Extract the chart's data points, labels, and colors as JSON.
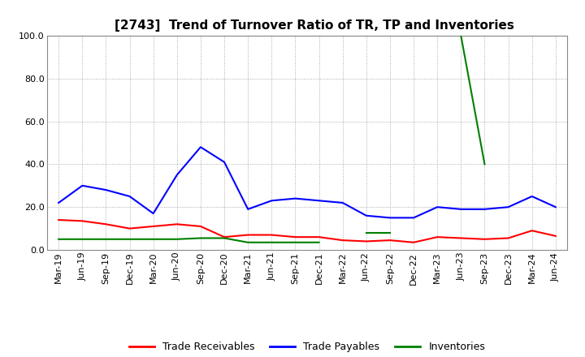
{
  "title": "[2743]  Trend of Turnover Ratio of TR, TP and Inventories",
  "xlabels": [
    "Mar-19",
    "Jun-19",
    "Sep-19",
    "Dec-19",
    "Mar-20",
    "Jun-20",
    "Sep-20",
    "Dec-20",
    "Mar-21",
    "Jun-21",
    "Sep-21",
    "Dec-21",
    "Mar-22",
    "Jun-22",
    "Sep-22",
    "Dec-22",
    "Mar-23",
    "Jun-23",
    "Sep-23",
    "Dec-23",
    "Mar-24",
    "Jun-24"
  ],
  "trade_receivables": [
    14.0,
    13.5,
    12.0,
    10.0,
    11.0,
    12.0,
    11.0,
    6.0,
    7.0,
    7.0,
    6.0,
    6.0,
    4.5,
    4.0,
    4.5,
    3.5,
    6.0,
    5.5,
    5.0,
    5.5,
    9.0,
    6.5
  ],
  "trade_payables": [
    22.0,
    30.0,
    28.0,
    25.0,
    17.0,
    35.0,
    48.0,
    41.0,
    19.0,
    23.0,
    24.0,
    23.0,
    22.0,
    16.0,
    15.0,
    15.0,
    20.0,
    19.0,
    19.0,
    20.0,
    25.0,
    20.0
  ],
  "inv_segments": [
    {
      "x": [
        0,
        1,
        2,
        3,
        4,
        5,
        6,
        7,
        8,
        9,
        10,
        11
      ],
      "y": [
        5.0,
        5.0,
        5.0,
        5.0,
        5.0,
        5.0,
        5.5,
        5.5,
        3.5,
        3.5,
        3.5,
        3.5
      ]
    },
    {
      "x": [
        13,
        14
      ],
      "y": [
        8.0,
        8.0
      ]
    },
    {
      "x": [
        17,
        18
      ],
      "y": [
        100.0,
        40.0
      ]
    }
  ],
  "ylim": [
    0.0,
    100.0
  ],
  "yticks": [
    0.0,
    20.0,
    40.0,
    60.0,
    80.0,
    100.0
  ],
  "color_tr": "#FF0000",
  "color_tp": "#0000FF",
  "color_inv": "#008000",
  "bg_color": "#FFFFFF",
  "grid_color": "#999999",
  "legend_labels": [
    "Trade Receivables",
    "Trade Payables",
    "Inventories"
  ],
  "title_fontsize": 11,
  "tick_fontsize": 8,
  "legend_fontsize": 9
}
